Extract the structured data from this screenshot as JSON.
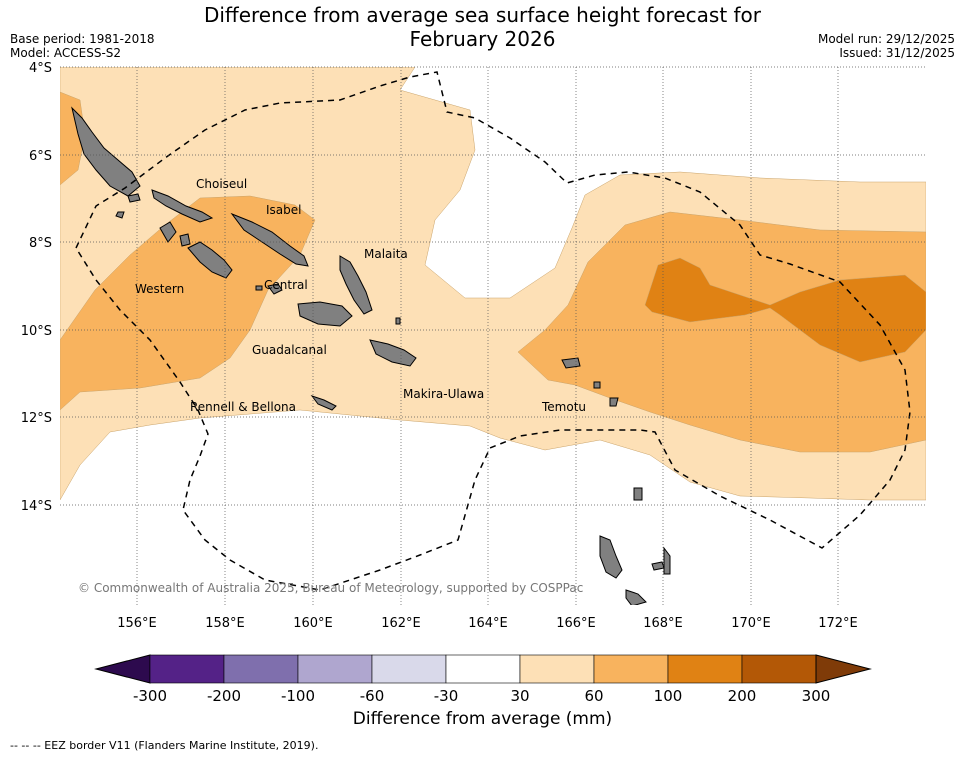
{
  "title_line1": "Difference from average sea surface height forecast for",
  "title_line2": "February 2026",
  "base_period": "Base period: 1981-2018",
  "model": "Model: ACCESS-S2",
  "model_run": "Model run: 29/12/2025",
  "issued": "Issued: 31/12/2025",
  "lat_labels": [
    "4°S",
    "6°S",
    "8°S",
    "10°S",
    "12°S",
    "14°S"
  ],
  "lon_labels": [
    "156°E",
    "158°E",
    "160°E",
    "162°E",
    "164°E",
    "166°E",
    "168°E",
    "170°E",
    "172°E"
  ],
  "regions": [
    "Choiseul",
    "Isabel",
    "Malaita",
    "Western",
    "Central",
    "Guadalcanal",
    "Makira-Ulawa",
    "Rennell & Bellona",
    "Temotu"
  ],
  "copyright": "© Commonwealth of Australia 2025, Bureau of Meteorology, supported by COSPPac",
  "colorbar": {
    "ticks": [
      "-300",
      "-200",
      "-100",
      "-60",
      "-30",
      "30",
      "60",
      "100",
      "200",
      "300"
    ],
    "colors": [
      "#2d0a4e",
      "#542287",
      "#7f6fad",
      "#afa6cf",
      "#d9d9ea",
      "#ffffff",
      "#fde0b6",
      "#f8b35e",
      "#e08214",
      "#b35806",
      "#7f3b08"
    ],
    "label": "Difference from average (mm)"
  },
  "legend_note": "--  --  -- EEZ border V11 (Flanders Marine Institute, 2019).",
  "palette": {
    "light": "#fde0b6",
    "mid": "#f8b35e",
    "dark": "#e08214",
    "land": "#808080"
  }
}
